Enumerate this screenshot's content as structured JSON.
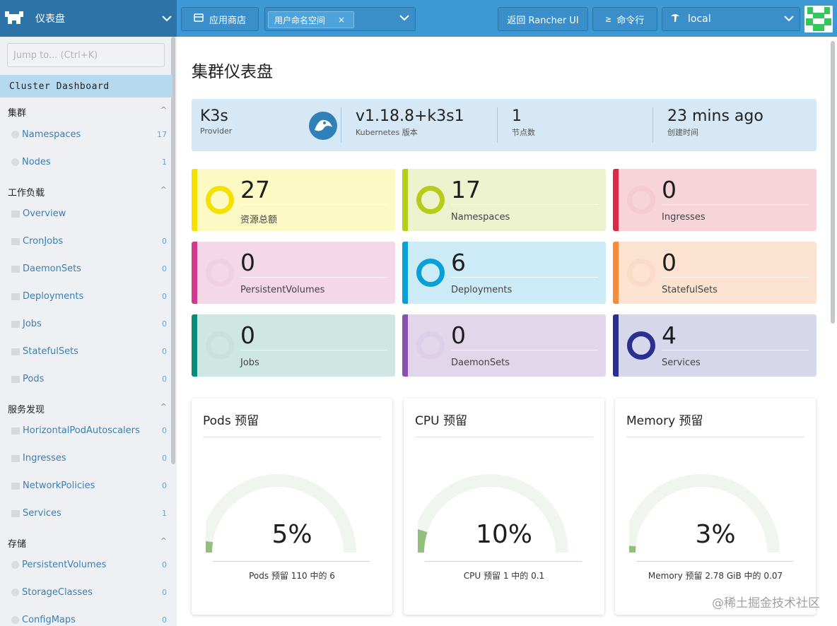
{
  "header": {
    "brand_title": "仪表盘",
    "app_store_label": "应用商店",
    "namespace_chip": "用户命名空间",
    "namespace_chip_close": "×",
    "back_rancher_label": "返回 Rancher UI",
    "kubectl_label": "命令行",
    "cluster_name": "local"
  },
  "sidebar": {
    "jump_placeholder": "Jump to... (Ctrl+K)",
    "active_item": "Cluster Dashboard",
    "groups": [
      {
        "label": "集群",
        "caret": "^",
        "items": [
          {
            "label": "Namespaces",
            "count": "17",
            "icon": "dot"
          },
          {
            "label": "Nodes",
            "count": "1",
            "icon": "dot"
          }
        ]
      },
      {
        "label": "工作负载",
        "caret": "^",
        "items": [
          {
            "label": "Overview",
            "count": "",
            "icon": "folder"
          },
          {
            "label": "CronJobs",
            "count": "0",
            "icon": "folder"
          },
          {
            "label": "DaemonSets",
            "count": "0",
            "icon": "folder"
          },
          {
            "label": "Deployments",
            "count": "0",
            "icon": "folder"
          },
          {
            "label": "Jobs",
            "count": "0",
            "icon": "folder"
          },
          {
            "label": "StatefulSets",
            "count": "0",
            "icon": "folder"
          },
          {
            "label": "Pods",
            "count": "0",
            "icon": "folder"
          }
        ]
      },
      {
        "label": "服务发现",
        "caret": "^",
        "items": [
          {
            "label": "HorizontalPodAutoscalers",
            "count": "0",
            "icon": "folder"
          },
          {
            "label": "Ingresses",
            "count": "0",
            "icon": "folder"
          },
          {
            "label": "NetworkPolicies",
            "count": "0",
            "icon": "folder"
          },
          {
            "label": "Services",
            "count": "1",
            "icon": "folder"
          }
        ]
      },
      {
        "label": "存储",
        "caret": "^",
        "items": [
          {
            "label": "PersistentVolumes",
            "count": "0",
            "icon": "dot"
          },
          {
            "label": "StorageClasses",
            "count": "0",
            "icon": "dot"
          },
          {
            "label": "ConfigMaps",
            "count": "0",
            "icon": "dot"
          }
        ]
      }
    ]
  },
  "main": {
    "title": "集群仪表盘",
    "info": {
      "provider_value": "K3s",
      "provider_label": "Provider",
      "version_value": "v1.18.8+k3s1",
      "version_label": "Kubernetes 版本",
      "nodes_value": "1",
      "nodes_label": "节点数",
      "created_value": "23 mins ago",
      "created_label": "创建时间"
    },
    "cards": [
      {
        "value": "27",
        "label": "资源总额",
        "accent": "#f5e100",
        "bg": "#fdf9c4",
        "ring": "#f5e100",
        "ring_visible": true
      },
      {
        "value": "17",
        "label": "Namespaces",
        "accent": "#b5cc18",
        "bg": "#eef3cf",
        "ring": "#b5cc18",
        "ring_visible": true
      },
      {
        "value": "0",
        "label": "Ingresses",
        "accent": "#db2845",
        "bg": "#f6d4d9",
        "ring": "#f0c2c9",
        "ring_visible": false
      },
      {
        "value": "0",
        "label": "PersistentVolumes",
        "accent": "#d33a8e",
        "bg": "#f4d8e8",
        "ring": "#eecadd",
        "ring_visible": false
      },
      {
        "value": "6",
        "label": "Deployments",
        "accent": "#08a0d8",
        "bg": "#cdebf7",
        "ring": "#08a0d8",
        "ring_visible": true
      },
      {
        "value": "0",
        "label": "StatefulSets",
        "accent": "#f68b3c",
        "bg": "#fce3d1",
        "ring": "#f7d6bf",
        "ring_visible": false
      },
      {
        "value": "0",
        "label": "Jobs",
        "accent": "#0a8a78",
        "bg": "#cfe7e3",
        "ring": "#c1dfda",
        "ring_visible": false
      },
      {
        "value": "0",
        "label": "DaemonSets",
        "accent": "#8a52ad",
        "bg": "#e2d6ea",
        "ring": "#d9cbe4",
        "ring_visible": false
      },
      {
        "value": "4",
        "label": "Services",
        "accent": "#2b2f8e",
        "bg": "#d6d7ea",
        "ring": "#2b2f8e",
        "ring_visible": true
      }
    ],
    "gauges": [
      {
        "title": "Pods 预留",
        "percent": "5%",
        "fraction": 0.05,
        "caption": "Pods 预留 110 中的 6"
      },
      {
        "title": "CPU 预留",
        "percent": "10%",
        "fraction": 0.1,
        "caption": "CPU 预留 1 中的 0.1"
      },
      {
        "title": "Memory 预留",
        "percent": "3%",
        "fraction": 0.03,
        "caption": "Memory 预留 2.78 GiB 中的 0.07"
      }
    ],
    "gauge_fill_color": "#93bf7c",
    "gauge_track_color": "#f1f5ef"
  },
  "watermark": "@稀土掘金技术社区"
}
